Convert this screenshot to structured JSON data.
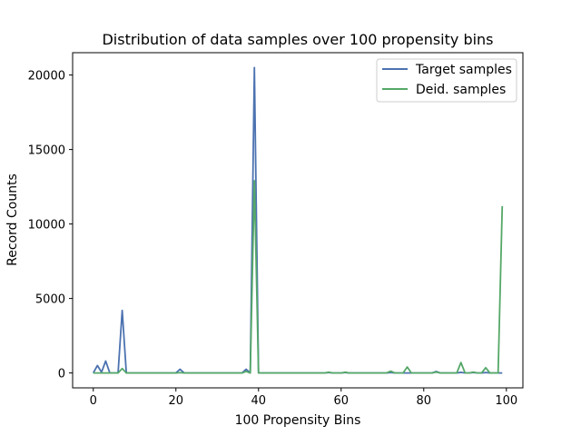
{
  "chart_data": {
    "type": "line",
    "title": "Distribution of data samples over 100 propensity bins",
    "xlabel": "100 Propensity Bins",
    "ylabel": "Record Counts",
    "xlim": [
      -5,
      104
    ],
    "ylim": [
      -1000,
      21500
    ],
    "xticks": [
      0,
      20,
      40,
      60,
      80,
      100
    ],
    "yticks": [
      0,
      5000,
      10000,
      15000,
      20000
    ],
    "legend_position": "top-right",
    "series": [
      {
        "name": "Target samples",
        "color": "#4c72b0",
        "points": [
          [
            0,
            0
          ],
          [
            1,
            500
          ],
          [
            2,
            50
          ],
          [
            3,
            800
          ],
          [
            4,
            0
          ],
          [
            5,
            0
          ],
          [
            6,
            0
          ],
          [
            7,
            4200
          ],
          [
            8,
            0
          ],
          [
            20,
            0
          ],
          [
            21,
            250
          ],
          [
            22,
            0
          ],
          [
            36,
            0
          ],
          [
            37,
            250
          ],
          [
            38,
            0
          ],
          [
            39,
            20500
          ],
          [
            40,
            0
          ],
          [
            56,
            0
          ],
          [
            57,
            30
          ],
          [
            58,
            0
          ],
          [
            60,
            0
          ],
          [
            61,
            30
          ],
          [
            62,
            0
          ],
          [
            71,
            0
          ],
          [
            72,
            30
          ],
          [
            73,
            0
          ],
          [
            82,
            0
          ],
          [
            83,
            100
          ],
          [
            84,
            0
          ],
          [
            88,
            0
          ],
          [
            89,
            40
          ],
          [
            90,
            0
          ],
          [
            91,
            0
          ],
          [
            92,
            30
          ],
          [
            93,
            0
          ],
          [
            94,
            0
          ],
          [
            95,
            30
          ],
          [
            96,
            0
          ],
          [
            99,
            0
          ]
        ]
      },
      {
        "name": "Deid. samples",
        "color": "#55a868",
        "points": [
          [
            0,
            0
          ],
          [
            1,
            0
          ],
          [
            2,
            0
          ],
          [
            3,
            0
          ],
          [
            4,
            0
          ],
          [
            5,
            0
          ],
          [
            6,
            0
          ],
          [
            7,
            300
          ],
          [
            8,
            0
          ],
          [
            20,
            0
          ],
          [
            21,
            20
          ],
          [
            22,
            0
          ],
          [
            36,
            0
          ],
          [
            37,
            100
          ],
          [
            38,
            0
          ],
          [
            39,
            12900
          ],
          [
            40,
            0
          ],
          [
            56,
            0
          ],
          [
            57,
            50
          ],
          [
            58,
            0
          ],
          [
            60,
            0
          ],
          [
            61,
            50
          ],
          [
            62,
            0
          ],
          [
            71,
            0
          ],
          [
            72,
            120
          ],
          [
            73,
            0
          ],
          [
            75,
            0
          ],
          [
            76,
            400
          ],
          [
            77,
            0
          ],
          [
            82,
            0
          ],
          [
            83,
            60
          ],
          [
            84,
            0
          ],
          [
            88,
            0
          ],
          [
            89,
            700
          ],
          [
            90,
            0
          ],
          [
            91,
            0
          ],
          [
            92,
            60
          ],
          [
            93,
            0
          ],
          [
            94,
            0
          ],
          [
            95,
            350
          ],
          [
            96,
            0
          ],
          [
            97,
            0
          ],
          [
            98,
            0
          ],
          [
            99,
            11200
          ]
        ]
      }
    ]
  }
}
